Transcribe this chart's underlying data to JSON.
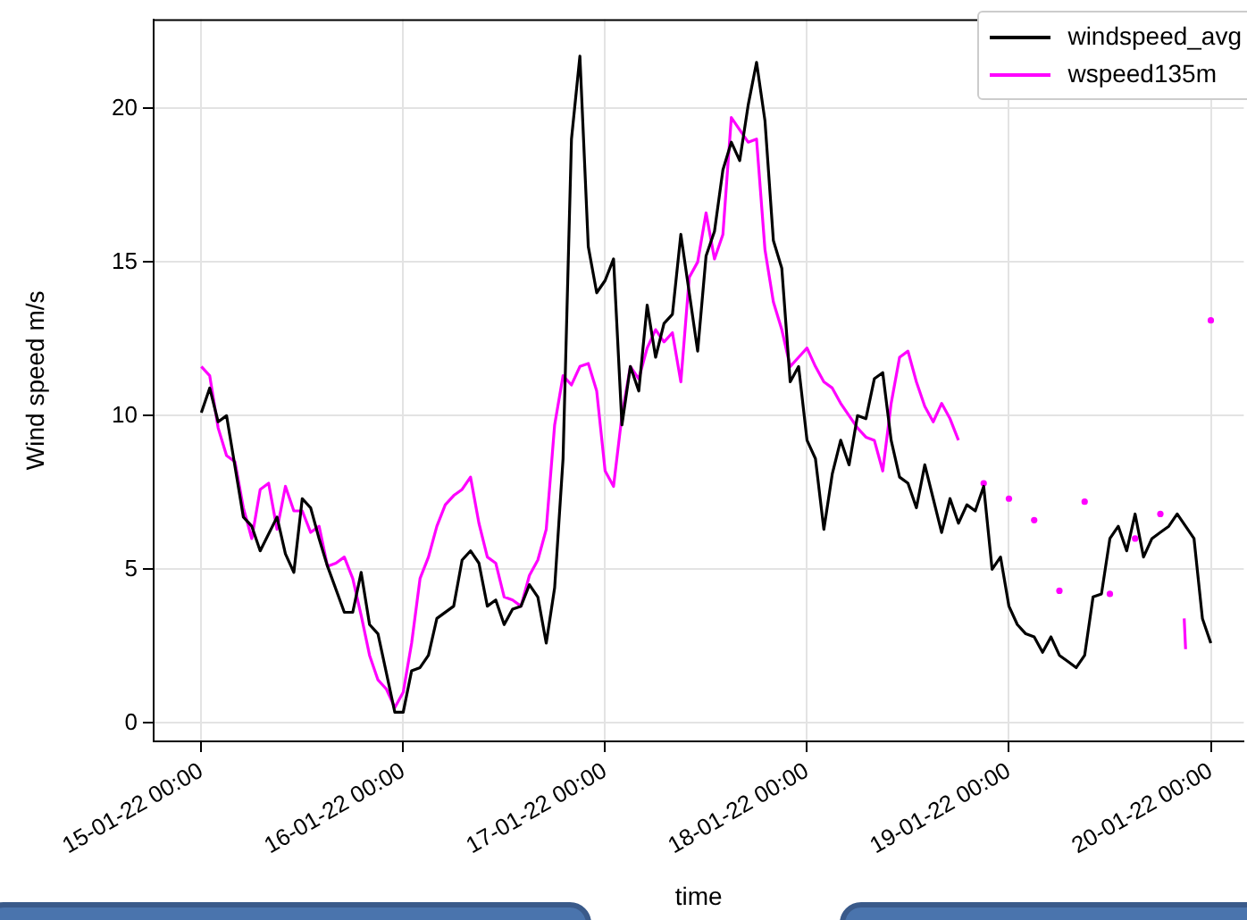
{
  "chart_data": {
    "type": "line",
    "xlabel": "time",
    "ylabel": "Wind speed m/s",
    "xlim": [
      "--01-14T18:20",
      "--01-20T03:55"
    ],
    "xticks": [
      {
        "value": "--01-15T00:00",
        "label": "15-01-22 00:00"
      },
      {
        "value": "--01-16T00:00",
        "label": "16-01-22 00:00"
      },
      {
        "value": "--01-17T00:00",
        "label": "17-01-22 00:00"
      },
      {
        "value": "--01-18T00:00",
        "label": "18-01-22 00:00"
      },
      {
        "value": "--01-19T00:00",
        "label": "19-01-22 00:00"
      },
      {
        "value": "--01-20T00:00",
        "label": "20-01-22 00:00"
      }
    ],
    "ylim": [
      -0.6,
      22.9
    ],
    "yticks": [
      0,
      5,
      10,
      15,
      20
    ],
    "grid": true,
    "legend": "top right",
    "series": [
      {
        "name": "windspeed_avg",
        "color": "#000000",
        "x": [
          "--01-15T00:00",
          "--01-15T01:00",
          "--01-15T02:00",
          "--01-15T03:00",
          "--01-15T05:00",
          "--01-15T06:00",
          "--01-15T07:00",
          "--01-15T09:00",
          "--01-15T10:00",
          "--01-15T11:00",
          "--01-15T12:00",
          "--01-15T13:00",
          "--01-15T14:00",
          "--01-15T15:00",
          "--01-15T17:00",
          "--01-15T18:00",
          "--01-15T19:00",
          "--01-15T20:00",
          "--01-15T21:00",
          "--01-15T23:00",
          "--01-16T00:00",
          "--01-16T01:00",
          "--01-16T02:00",
          "--01-16T03:00",
          "--01-16T04:00",
          "--01-16T06:00",
          "--01-16T07:00",
          "--01-16T08:00",
          "--01-16T09:00",
          "--01-16T10:00",
          "--01-16T11:00",
          "--01-16T12:00",
          "--01-16T13:00",
          "--01-16T14:00",
          "--01-16T15:00",
          "--01-16T16:00",
          "--01-16T17:00",
          "--01-16T18:00",
          "--01-16T19:00",
          "--01-16T20:00",
          "--01-16T21:00",
          "--01-16T22:00",
          "--01-16T23:00",
          "--01-17T00:00",
          "--01-17T01:00",
          "--01-17T02:00",
          "--01-17T03:00",
          "--01-17T04:00",
          "--01-17T05:00",
          "--01-17T06:00",
          "--01-17T07:00",
          "--01-17T08:00",
          "--01-17T09:00",
          "--01-17T10:00",
          "--01-17T11:00",
          "--01-17T12:00",
          "--01-17T13:00",
          "--01-17T14:00",
          "--01-17T15:00",
          "--01-17T16:00",
          "--01-17T17:00",
          "--01-17T18:00",
          "--01-17T19:00",
          "--01-17T20:00",
          "--01-17T21:00",
          "--01-17T22:00",
          "--01-17T23:00",
          "--01-18T00:00",
          "--01-18T01:00",
          "--01-18T02:00",
          "--01-18T03:00",
          "--01-18T04:00",
          "--01-18T05:00",
          "--01-18T06:00",
          "--01-18T07:00",
          "--01-18T08:00",
          "--01-18T09:00",
          "--01-18T10:00",
          "--01-18T11:00",
          "--01-18T12:00",
          "--01-18T13:00",
          "--01-18T14:00",
          "--01-18T15:00",
          "--01-18T16:00",
          "--01-18T17:00",
          "--01-18T18:00",
          "--01-18T19:00",
          "--01-18T20:00",
          "--01-18T21:00",
          "--01-18T22:00",
          "--01-18T23:00",
          "--01-19T00:00",
          "--01-19T01:00",
          "--01-19T02:00",
          "--01-19T03:00",
          "--01-19T04:00",
          "--01-19T05:00",
          "--01-19T06:00",
          "--01-19T07:00",
          "--01-19T08:00",
          "--01-19T09:00",
          "--01-19T10:00",
          "--01-19T11:00",
          "--01-19T12:00",
          "--01-19T13:00",
          "--01-19T14:00",
          "--01-19T15:00",
          "--01-19T16:00",
          "--01-19T17:00",
          "--01-19T18:00",
          "--01-19T19:00",
          "--01-19T20:00",
          "--01-19T21:00",
          "--01-19T22:00",
          "--01-19T23:00",
          "--01-20T00:00"
        ],
        "values": [
          10.1,
          10.9,
          9.8,
          10.0,
          6.7,
          6.4,
          5.6,
          6.7,
          5.5,
          4.9,
          7.3,
          7.0,
          6.0,
          5.1,
          3.6,
          3.6,
          4.9,
          3.2,
          2.9,
          0.35,
          0.35,
          1.7,
          1.8,
          2.2,
          3.4,
          3.8,
          5.3,
          5.6,
          5.2,
          3.8,
          4.0,
          3.2,
          3.7,
          3.8,
          4.5,
          4.1,
          2.6,
          4.4,
          8.6,
          19.0,
          21.7,
          15.5,
          14.0,
          14.4,
          15.1,
          9.7,
          11.6,
          10.8,
          13.6,
          11.9,
          13.0,
          13.3,
          15.9,
          14.0,
          12.1,
          15.2,
          16.0,
          18.0,
          18.9,
          18.3,
          20.1,
          21.5,
          19.6,
          15.7,
          14.8,
          11.1,
          11.6,
          9.2,
          8.6,
          6.3,
          8.1,
          9.2,
          8.4,
          10.0,
          9.9,
          11.2,
          11.4,
          9.2,
          8.0,
          7.8,
          7.0,
          8.4,
          7.3,
          6.2,
          7.3,
          6.5,
          7.1,
          6.9,
          7.7,
          5.0,
          5.4,
          3.8,
          3.2,
          2.9,
          2.8,
          2.3,
          2.8,
          2.2,
          2.0,
          1.8,
          2.2,
          4.1,
          4.2,
          6.0,
          6.4,
          5.6,
          6.8,
          5.4,
          6.0,
          6.2,
          6.4,
          6.8,
          6.4,
          6.0,
          3.4,
          2.6
        ]
      },
      {
        "name": "wspeed135m",
        "color": "#ff00ff",
        "x": [
          "--01-15T00:00",
          "--01-15T01:00",
          "--01-15T02:00",
          "--01-15T03:00",
          "--01-15T04:00",
          "--01-15T05:00",
          "--01-15T06:00",
          "--01-15T07:00",
          "--01-15T08:00",
          "--01-15T09:00",
          "--01-15T10:00",
          "--01-15T11:00",
          "--01-15T12:00",
          "--01-15T13:00",
          "--01-15T14:00",
          "--01-15T15:00",
          "--01-15T16:00",
          "--01-15T17:00",
          "--01-15T18:00",
          "--01-15T19:00",
          "--01-15T20:00",
          "--01-15T21:00",
          "--01-15T22:00",
          "--01-15T23:00",
          "--01-16T00:00",
          "--01-16T01:00",
          "--01-16T02:00",
          "--01-16T03:00",
          "--01-16T04:00",
          "--01-16T05:00",
          "--01-16T06:00",
          "--01-16T07:00",
          "--01-16T08:00",
          "--01-16T09:00",
          "--01-16T10:00",
          "--01-16T11:00",
          "--01-16T12:00",
          "--01-16T13:00",
          "--01-16T14:00",
          "--01-16T15:00",
          "--01-16T16:00",
          "--01-16T17:00",
          "--01-16T18:00",
          "--01-16T19:00",
          "--01-16T20:00",
          "--01-16T21:00",
          "--01-16T22:00",
          "--01-16T23:00",
          "--01-17T00:00",
          "--01-17T01:00",
          "--01-17T02:00",
          "--01-17T03:00",
          "--01-17T04:00",
          "--01-17T05:00",
          "--01-17T06:00",
          "--01-17T07:00",
          "--01-17T08:00",
          "--01-17T09:00",
          "--01-17T10:00",
          "--01-17T11:00",
          "--01-17T12:00",
          "--01-17T13:00",
          "--01-17T14:00",
          "--01-17T15:00",
          "--01-17T16:00",
          "--01-17T17:00",
          "--01-17T18:00",
          "--01-17T19:00",
          "--01-17T20:00",
          "--01-17T21:00",
          "--01-17T22:00",
          "--01-17T23:00",
          "--01-18T00:00",
          "--01-18T01:00",
          "--01-18T02:00",
          "--01-18T03:00",
          "--01-18T04:00",
          "--01-18T05:00",
          "--01-18T06:00",
          "--01-18T07:00",
          "--01-18T08:00",
          "--01-18T09:00",
          "--01-18T10:00",
          "--01-18T11:00",
          "--01-18T12:00",
          "--01-18T13:00",
          "--01-18T14:00",
          "--01-18T15:00",
          "--01-18T16:00",
          "--01-18T17:00",
          "--01-18T18:00",
          "--01-18T19:00",
          "--01-18T21:00",
          "--01-18T22:00",
          "--01-19T00:00",
          "--01-19T01:00",
          "--01-19T03:00",
          "--01-19T04:00",
          "--01-19T06:00",
          "--01-19T07:00",
          "--01-19T09:00",
          "--01-19T10:00",
          "--01-19T12:00",
          "--01-19T13:00",
          "--01-19T15:00",
          "--01-19T16:00",
          "--01-19T18:00",
          "--01-19T19:00",
          "--01-19T20:50",
          "--01-19T21:00",
          "--01-19T22:00",
          "--01-20T00:00"
        ],
        "values": [
          11.6,
          11.3,
          9.6,
          8.7,
          8.5,
          7.0,
          6.0,
          7.6,
          7.8,
          6.3,
          7.7,
          6.9,
          6.9,
          6.2,
          6.4,
          5.1,
          5.2,
          5.4,
          4.7,
          3.5,
          2.2,
          1.4,
          1.1,
          0.5,
          1.0,
          2.6,
          4.7,
          5.4,
          6.4,
          7.1,
          7.4,
          7.6,
          8.0,
          6.5,
          5.4,
          5.2,
          4.1,
          4.0,
          3.8,
          4.8,
          5.3,
          6.3,
          9.7,
          11.3,
          11.0,
          11.6,
          11.7,
          10.8,
          8.2,
          7.7,
          10.0,
          11.6,
          11.2,
          12.2,
          12.8,
          12.4,
          12.7,
          11.1,
          14.5,
          15.0,
          16.6,
          15.1,
          15.9,
          19.7,
          19.3,
          18.9,
          19.0,
          15.4,
          13.7,
          12.8,
          11.6,
          11.9,
          12.2,
          11.6,
          11.1,
          10.9,
          10.4,
          10.0,
          9.6,
          9.3,
          9.2,
          8.2,
          10.4,
          11.9,
          12.1,
          11.1,
          10.3,
          9.8,
          10.4,
          9.9,
          9.2,
          null,
          7.8,
          null,
          7.3,
          null,
          6.6,
          null,
          4.3,
          null,
          7.2,
          null,
          4.2,
          null,
          6.0,
          null,
          6.8,
          null,
          3.4,
          2.4,
          null,
          13.1
        ]
      }
    ]
  }
}
